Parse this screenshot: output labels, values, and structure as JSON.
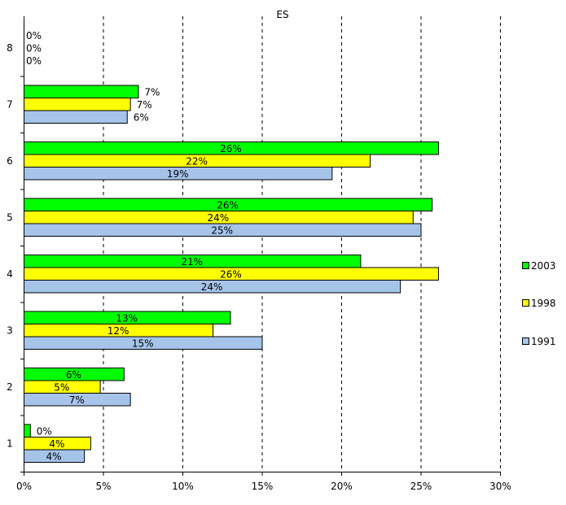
{
  "chart_data": {
    "type": "bar",
    "orientation": "horizontal",
    "title": "ES",
    "xlabel": "",
    "ylabel": "",
    "xlim": [
      0,
      30
    ],
    "x_ticks": [
      "0%",
      "5%",
      "10%",
      "15%",
      "20%",
      "25%",
      "30%"
    ],
    "x_tick_values": [
      0,
      5,
      10,
      15,
      20,
      25,
      30
    ],
    "grid": "vertical dashed",
    "legend_position": "right",
    "categories": [
      "1",
      "2",
      "3",
      "4",
      "5",
      "6",
      "7",
      "8"
    ],
    "series": [
      {
        "name": "2003",
        "color": "#00ff00",
        "values": [
          0.4,
          6.3,
          13.0,
          21.2,
          25.7,
          26.1,
          7.2,
          0
        ],
        "labels": [
          "0%",
          "6%",
          "13%",
          "21%",
          "26%",
          "26%",
          "7%",
          "0%"
        ],
        "label_pos": [
          "outside",
          "inside",
          "inside",
          "inside",
          "inside",
          "inside",
          "outside",
          "outside"
        ]
      },
      {
        "name": "1998",
        "color": "#ffff00",
        "values": [
          4.2,
          4.8,
          11.9,
          26.1,
          24.5,
          21.8,
          6.7,
          0
        ],
        "labels": [
          "4%",
          "5%",
          "12%",
          "26%",
          "24%",
          "22%",
          "7%",
          "0%"
        ],
        "label_pos": [
          "inside",
          "inside",
          "inside",
          "inside",
          "inside",
          "inside",
          "outside",
          "outside"
        ]
      },
      {
        "name": "1991",
        "color": "#a6c4ea",
        "values": [
          3.8,
          6.7,
          15.0,
          23.7,
          25.0,
          19.4,
          6.5,
          0
        ],
        "labels": [
          "4%",
          "7%",
          "15%",
          "24%",
          "25%",
          "19%",
          "6%",
          "0%"
        ],
        "label_pos": [
          "inside",
          "inside",
          "inside",
          "inside",
          "inside",
          "inside",
          "outside",
          "outside"
        ]
      }
    ]
  }
}
